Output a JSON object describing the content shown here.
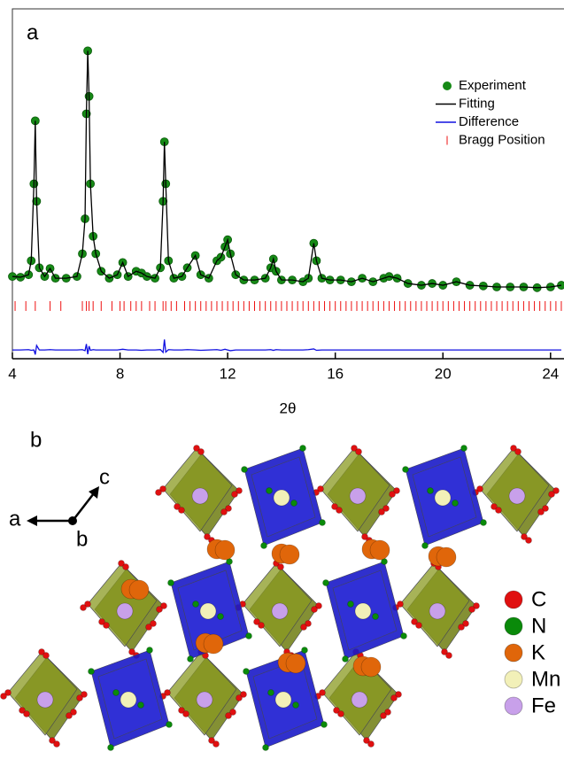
{
  "chart_data": {
    "type": "line",
    "panel_label": "a",
    "xlabel": "2θ",
    "xlim": [
      4,
      24.5
    ],
    "xticks": [
      4,
      8,
      12,
      16,
      20,
      24
    ],
    "ylim": [
      0,
      100
    ],
    "legend": "top-right",
    "x": [
      4,
      4.3,
      4.6,
      4.7,
      4.8,
      4.85,
      4.9,
      5.0,
      5.2,
      5.4,
      5.6,
      6.0,
      6.4,
      6.6,
      6.7,
      6.75,
      6.8,
      6.85,
      6.9,
      7.0,
      7.1,
      7.3,
      7.6,
      7.9,
      8.1,
      8.3,
      8.6,
      8.8,
      9.0,
      9.3,
      9.5,
      9.6,
      9.65,
      9.7,
      9.8,
      10.0,
      10.3,
      10.5,
      10.8,
      11.0,
      11.3,
      11.6,
      11.75,
      11.9,
      12.0,
      12.1,
      12.3,
      12.6,
      13.0,
      13.4,
      13.6,
      13.7,
      13.8,
      14.0,
      14.4,
      14.8,
      15.0,
      15.2,
      15.3,
      15.5,
      15.8,
      16.2,
      16.6,
      17.0,
      17.4,
      17.8,
      18.0,
      18.3,
      18.7,
      19.2,
      19.6,
      20.0,
      20.5,
      21.0,
      21.5,
      22.0,
      22.5,
      23.0,
      23.5,
      24.0,
      24.4
    ],
    "series": [
      {
        "name": "Experiment",
        "color": "#168a16",
        "marker": "circle",
        "values": [
          23.5,
          23.3,
          24,
          28,
          50,
          68,
          45,
          26,
          23.5,
          25.8,
          23,
          23,
          23.5,
          30,
          40,
          70,
          88,
          75,
          50,
          35,
          30,
          25,
          23,
          24,
          27.5,
          23.5,
          25,
          24.5,
          23.5,
          23,
          26,
          45,
          62,
          50,
          28,
          23,
          23.5,
          26,
          29.5,
          24,
          23,
          28,
          29,
          32,
          34,
          30,
          24,
          22.5,
          22.5,
          23,
          26,
          28.5,
          25,
          22.5,
          22.5,
          22,
          23,
          33,
          28,
          23,
          22.5,
          22.5,
          22,
          23,
          22,
          23,
          23.5,
          23,
          21.5,
          21,
          21.5,
          21,
          22,
          21,
          20.8,
          20.5,
          20.5,
          20.5,
          20.3,
          20.5,
          21
        ]
      },
      {
        "name": "Fitting",
        "color": "#000000",
        "marker": "line",
        "values": [
          23.5,
          23.3,
          24,
          28,
          50,
          68,
          45,
          26,
          23.5,
          25.8,
          23,
          23,
          23.5,
          30,
          40,
          70,
          88,
          75,
          50,
          35,
          30,
          25,
          23,
          24,
          27.5,
          23.5,
          25,
          24.5,
          23.5,
          23,
          26,
          45,
          62,
          50,
          28,
          23,
          23.5,
          26,
          29.5,
          24,
          23,
          28,
          29,
          32,
          34,
          30,
          24,
          22.5,
          22.5,
          23,
          26,
          28.5,
          25,
          22.5,
          22.5,
          22,
          23,
          33,
          28,
          23,
          22.5,
          22.5,
          22,
          23,
          22,
          23,
          23.5,
          23,
          21.5,
          21,
          21.5,
          21,
          22,
          21,
          20.8,
          20.5,
          20.5,
          20.5,
          20.3,
          20.5,
          21
        ]
      },
      {
        "name": "Difference",
        "color": "#1010e0",
        "marker": "line",
        "values": [
          2.5,
          2.5,
          2.6,
          2.4,
          2.5,
          1.2,
          3.8,
          2.5,
          2.5,
          2.6,
          2.5,
          2.5,
          2.5,
          2.6,
          2.3,
          4.2,
          1.3,
          3.6,
          2.4,
          2.6,
          2.5,
          2.5,
          2.5,
          2.5,
          2.7,
          2.5,
          2.5,
          2.4,
          2.5,
          2.5,
          2.6,
          1.8,
          5.5,
          1.9,
          2.6,
          2.5,
          2.5,
          2.6,
          2.5,
          2.4,
          2.5,
          2.6,
          2.4,
          2.7,
          2.5,
          2.3,
          2.5,
          2.5,
          2.5,
          2.5,
          2.6,
          2.4,
          2.6,
          2.5,
          2.5,
          2.5,
          2.6,
          2.8,
          2.4,
          2.5,
          2.5,
          2.5,
          2.5,
          2.5,
          2.5,
          2.5,
          2.5,
          2.5,
          2.5,
          2.5,
          2.5,
          2.5,
          2.5,
          2.5,
          2.5,
          2.5,
          2.5,
          2.5,
          2.5,
          2.5,
          2.5
        ]
      },
      {
        "name": "Bragg Position",
        "color": "#ee1111",
        "marker": "tick",
        "x": [
          4.1,
          4.5,
          4.85,
          5.4,
          5.8,
          6.6,
          6.75,
          6.85,
          7.0,
          7.3,
          7.7,
          8.0,
          8.15,
          8.4,
          8.6,
          8.8,
          9.1,
          9.3,
          9.6,
          9.7,
          9.9,
          10.1,
          10.4,
          10.6,
          10.8,
          11.0,
          11.2,
          11.4,
          11.6,
          11.8,
          12.0,
          12.2,
          12.4,
          12.6,
          12.8,
          13.0,
          13.2,
          13.4,
          13.6,
          13.8,
          14.0,
          14.2,
          14.4,
          14.6,
          14.8,
          15.0,
          15.2,
          15.4,
          15.6,
          15.8,
          16.0,
          16.2,
          16.4,
          16.6,
          16.8,
          17.0,
          17.2,
          17.4,
          17.6,
          17.8,
          18.0,
          18.2,
          18.4,
          18.6,
          18.8,
          19.0,
          19.2,
          19.4,
          19.6,
          19.8,
          20.0,
          20.2,
          20.4,
          20.6,
          20.8,
          21.0,
          21.2,
          21.4,
          21.6,
          21.8,
          22.0,
          22.2,
          22.4,
          22.6,
          22.8,
          23.0,
          23.2,
          23.4,
          23.6,
          23.8,
          24.0,
          24.2,
          24.4
        ]
      }
    ]
  },
  "structure": {
    "panel_label": "b",
    "axes": {
      "a": "a",
      "b": "b",
      "c": "c"
    },
    "legend": [
      {
        "label": "C",
        "color": "#e01010"
      },
      {
        "label": "N",
        "color": "#0a8a0a"
      },
      {
        "label": "K",
        "color": "#e0660a"
      },
      {
        "label": "Mn",
        "color": "#f2f0b8"
      },
      {
        "label": "Fe",
        "color": "#c8a0ea"
      }
    ]
  }
}
